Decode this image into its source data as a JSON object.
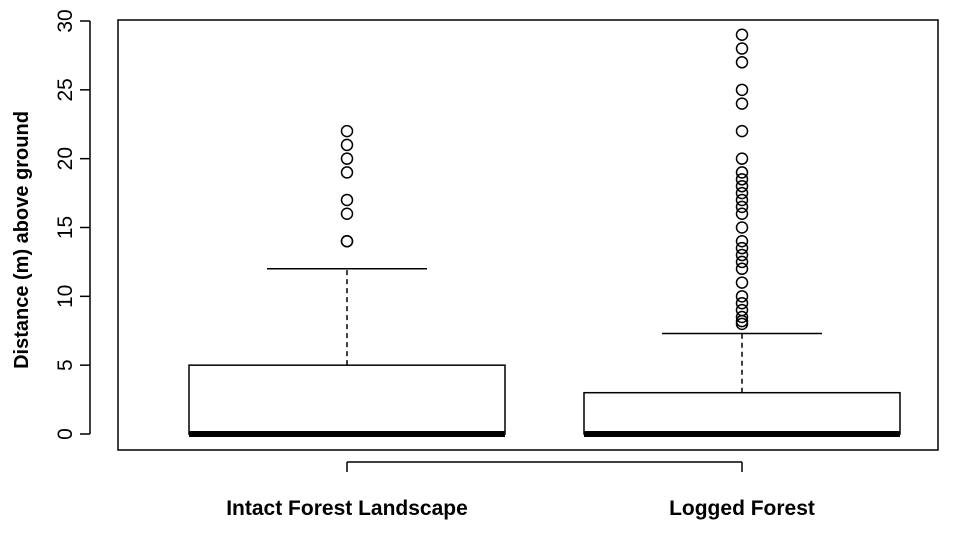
{
  "chart_data": {
    "type": "box",
    "title": "",
    "xlabel": "",
    "ylabel": "Distance (m) above ground",
    "ylim": [
      0,
      30
    ],
    "yticks": [
      0,
      5,
      10,
      15,
      20,
      25,
      30
    ],
    "ytick_labels": [
      "0",
      "5",
      "10",
      "15",
      "20",
      "25",
      "30"
    ],
    "grid": false,
    "categories": [
      "Intact Forest Landscape",
      "Logged Forest"
    ],
    "boxes": [
      {
        "category": "Intact Forest Landscape",
        "whisker_low": 0,
        "q1": 0,
        "median": 0,
        "q3": 5,
        "whisker_high": 12,
        "outliers": [
          14,
          14,
          16,
          17,
          19,
          20,
          21,
          22
        ]
      },
      {
        "category": "Logged Forest",
        "whisker_low": 0,
        "q1": 0,
        "median": 0,
        "q3": 3,
        "whisker_high": 7.3,
        "outliers": [
          8,
          8.2,
          8.5,
          9,
          9.5,
          10,
          11,
          12,
          12.5,
          13,
          13.5,
          14,
          15,
          16,
          16.5,
          17,
          17.5,
          18,
          18.5,
          19,
          20,
          22,
          24,
          25,
          27,
          28,
          29
        ]
      }
    ]
  }
}
